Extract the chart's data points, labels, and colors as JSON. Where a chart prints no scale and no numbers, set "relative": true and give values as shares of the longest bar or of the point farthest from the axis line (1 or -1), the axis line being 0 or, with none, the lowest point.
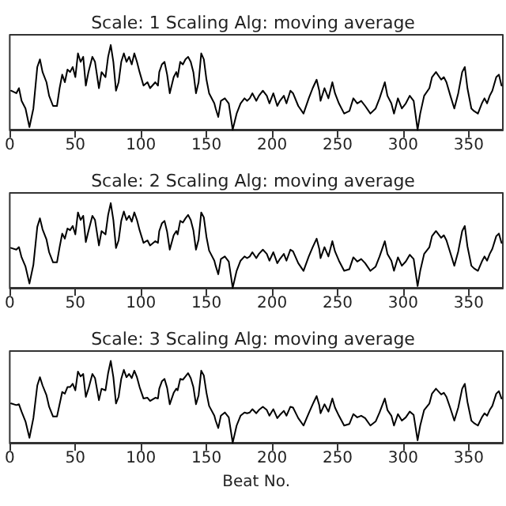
{
  "chart_data": [
    {
      "type": "line",
      "title": "Scale: 1 Scaling Alg: moving average",
      "relative": true,
      "xlim": [
        0,
        376
      ],
      "xticks": [
        0,
        50,
        100,
        150,
        200,
        250,
        300,
        350
      ],
      "tick_labels": "x",
      "grid": false,
      "legend": false,
      "marker": "none",
      "line_style": "solid",
      "series": [
        {
          "color": "#000000",
          "x": [
            1,
            5,
            7,
            9,
            12,
            15,
            18,
            21,
            23,
            25,
            28,
            30,
            33,
            36,
            38,
            40,
            42,
            44,
            46,
            48,
            50,
            52,
            54,
            56,
            58,
            60,
            63,
            65,
            68,
            70,
            73,
            75,
            77,
            79,
            81,
            83,
            85,
            87,
            89,
            91,
            93,
            95,
            97,
            99,
            102,
            105,
            107,
            111,
            113,
            114,
            116,
            118,
            120,
            122,
            125,
            127,
            128,
            130,
            132,
            134,
            136,
            138,
            140,
            142,
            144,
            146,
            148,
            150,
            152,
            156,
            157,
            159,
            161,
            164,
            167,
            170,
            173,
            176,
            179,
            181,
            183,
            185,
            188,
            190,
            193,
            196,
            198,
            201,
            204,
            206,
            209,
            211,
            214,
            216,
            220,
            224,
            228,
            231,
            234,
            236,
            237,
            240,
            243,
            246,
            248,
            251,
            255,
            259,
            262,
            265,
            268,
            271,
            275,
            279,
            282,
            286,
            288,
            291,
            293,
            296,
            299,
            302,
            305,
            308,
            311,
            313,
            316,
            320,
            322,
            325,
            329,
            331,
            333,
            336,
            339,
            342,
            345,
            347,
            349,
            352,
            354,
            357,
            360,
            362,
            364,
            366,
            368,
            371,
            373,
            375
          ],
          "values": [
            0.46,
            0.43,
            0.49,
            0.34,
            0.25,
            0.03,
            0.25,
            0.74,
            0.83,
            0.68,
            0.56,
            0.4,
            0.28,
            0.28,
            0.49,
            0.65,
            0.56,
            0.71,
            0.68,
            0.74,
            0.62,
            0.9,
            0.8,
            0.86,
            0.52,
            0.68,
            0.86,
            0.8,
            0.49,
            0.68,
            0.62,
            0.86,
            1.0,
            0.8,
            0.46,
            0.56,
            0.8,
            0.9,
            0.8,
            0.86,
            0.77,
            0.9,
            0.8,
            0.68,
            0.52,
            0.56,
            0.49,
            0.56,
            0.52,
            0.68,
            0.77,
            0.8,
            0.65,
            0.43,
            0.62,
            0.68,
            0.62,
            0.8,
            0.77,
            0.83,
            0.86,
            0.8,
            0.68,
            0.43,
            0.56,
            0.9,
            0.83,
            0.59,
            0.43,
            0.31,
            0.25,
            0.15,
            0.34,
            0.37,
            0.31,
            0.0,
            0.19,
            0.31,
            0.37,
            0.34,
            0.37,
            0.43,
            0.34,
            0.4,
            0.46,
            0.4,
            0.31,
            0.43,
            0.28,
            0.34,
            0.4,
            0.31,
            0.46,
            0.43,
            0.28,
            0.19,
            0.37,
            0.49,
            0.59,
            0.46,
            0.34,
            0.49,
            0.37,
            0.56,
            0.43,
            0.31,
            0.19,
            0.22,
            0.37,
            0.31,
            0.34,
            0.28,
            0.19,
            0.25,
            0.37,
            0.56,
            0.4,
            0.31,
            0.19,
            0.37,
            0.25,
            0.31,
            0.4,
            0.34,
            0.0,
            0.19,
            0.4,
            0.49,
            0.62,
            0.68,
            0.59,
            0.62,
            0.56,
            0.4,
            0.25,
            0.43,
            0.68,
            0.74,
            0.49,
            0.25,
            0.22,
            0.19,
            0.31,
            0.37,
            0.31,
            0.4,
            0.46,
            0.62,
            0.65,
            0.52
          ]
        }
      ]
    },
    {
      "type": "line",
      "title": "Scale: 2 Scaling Alg: moving average",
      "relative": true,
      "xlim": [
        0,
        376
      ],
      "xticks": [
        0,
        50,
        100,
        150,
        200,
        250,
        300,
        350
      ],
      "tick_labels": "x",
      "grid": false,
      "legend": false,
      "marker": "none",
      "line_style": "solid",
      "series": [
        {
          "color": "#000000",
          "x": [
            1,
            5,
            7,
            9,
            12,
            15,
            18,
            21,
            23,
            25,
            28,
            30,
            33,
            36,
            38,
            40,
            42,
            44,
            46,
            48,
            50,
            52,
            54,
            56,
            58,
            60,
            63,
            65,
            68,
            70,
            73,
            75,
            77,
            79,
            81,
            83,
            85,
            87,
            89,
            91,
            93,
            95,
            97,
            99,
            102,
            105,
            107,
            111,
            113,
            114,
            116,
            118,
            120,
            122,
            125,
            127,
            128,
            130,
            132,
            134,
            136,
            138,
            140,
            142,
            144,
            146,
            148,
            150,
            152,
            156,
            157,
            159,
            161,
            164,
            167,
            170,
            173,
            176,
            179,
            181,
            183,
            185,
            188,
            190,
            193,
            196,
            198,
            201,
            204,
            206,
            209,
            211,
            214,
            216,
            220,
            224,
            228,
            231,
            234,
            236,
            237,
            240,
            243,
            246,
            248,
            251,
            255,
            259,
            262,
            265,
            268,
            271,
            275,
            279,
            282,
            286,
            288,
            291,
            293,
            296,
            299,
            302,
            305,
            308,
            311,
            313,
            316,
            320,
            322,
            325,
            329,
            331,
            333,
            336,
            339,
            342,
            345,
            347,
            349,
            352,
            354,
            357,
            360,
            362,
            364,
            366,
            368,
            371,
            373,
            375
          ],
          "values": [
            0.47,
            0.45,
            0.48,
            0.36,
            0.25,
            0.05,
            0.27,
            0.72,
            0.82,
            0.69,
            0.57,
            0.42,
            0.3,
            0.3,
            0.48,
            0.64,
            0.58,
            0.7,
            0.68,
            0.73,
            0.63,
            0.89,
            0.8,
            0.85,
            0.54,
            0.67,
            0.85,
            0.8,
            0.5,
            0.67,
            0.63,
            0.86,
            1.0,
            0.8,
            0.47,
            0.56,
            0.79,
            0.9,
            0.8,
            0.85,
            0.78,
            0.89,
            0.8,
            0.68,
            0.53,
            0.56,
            0.5,
            0.55,
            0.53,
            0.67,
            0.76,
            0.79,
            0.66,
            0.45,
            0.62,
            0.67,
            0.63,
            0.79,
            0.77,
            0.82,
            0.86,
            0.8,
            0.68,
            0.45,
            0.57,
            0.89,
            0.83,
            0.6,
            0.44,
            0.32,
            0.26,
            0.16,
            0.34,
            0.37,
            0.31,
            0.0,
            0.2,
            0.32,
            0.37,
            0.35,
            0.37,
            0.42,
            0.35,
            0.4,
            0.45,
            0.4,
            0.32,
            0.42,
            0.29,
            0.34,
            0.4,
            0.32,
            0.45,
            0.43,
            0.29,
            0.2,
            0.37,
            0.48,
            0.58,
            0.46,
            0.35,
            0.48,
            0.37,
            0.55,
            0.43,
            0.32,
            0.2,
            0.22,
            0.36,
            0.31,
            0.34,
            0.29,
            0.2,
            0.25,
            0.37,
            0.55,
            0.4,
            0.32,
            0.2,
            0.36,
            0.26,
            0.31,
            0.39,
            0.34,
            0.02,
            0.2,
            0.4,
            0.48,
            0.61,
            0.67,
            0.59,
            0.62,
            0.56,
            0.41,
            0.26,
            0.43,
            0.67,
            0.73,
            0.49,
            0.26,
            0.23,
            0.2,
            0.31,
            0.37,
            0.32,
            0.4,
            0.46,
            0.61,
            0.64,
            0.53
          ]
        }
      ]
    },
    {
      "type": "line",
      "title": "Scale: 3 Scaling Alg: moving average",
      "xlabel": "Beat No.",
      "relative": true,
      "xlim": [
        0,
        376
      ],
      "xticks": [
        0,
        50,
        100,
        150,
        200,
        250,
        300,
        350
      ],
      "tick_labels": "x",
      "grid": false,
      "legend": false,
      "marker": "none",
      "line_style": "solid",
      "series": [
        {
          "color": "#000000",
          "x": [
            1,
            5,
            7,
            9,
            12,
            15,
            18,
            21,
            23,
            25,
            28,
            30,
            33,
            36,
            38,
            40,
            42,
            44,
            46,
            48,
            50,
            52,
            54,
            56,
            58,
            60,
            63,
            65,
            68,
            70,
            73,
            75,
            77,
            79,
            81,
            83,
            85,
            87,
            89,
            91,
            93,
            95,
            97,
            99,
            102,
            105,
            107,
            111,
            113,
            114,
            116,
            118,
            120,
            122,
            125,
            127,
            128,
            130,
            132,
            134,
            136,
            138,
            140,
            142,
            144,
            146,
            148,
            150,
            152,
            156,
            157,
            159,
            161,
            164,
            167,
            170,
            173,
            176,
            179,
            181,
            183,
            185,
            188,
            190,
            193,
            196,
            198,
            201,
            204,
            206,
            209,
            211,
            214,
            216,
            220,
            224,
            228,
            231,
            234,
            236,
            237,
            240,
            243,
            246,
            248,
            251,
            255,
            259,
            262,
            265,
            268,
            271,
            275,
            279,
            282,
            286,
            288,
            291,
            293,
            296,
            299,
            302,
            305,
            308,
            311,
            313,
            316,
            320,
            322,
            325,
            329,
            331,
            333,
            336,
            339,
            342,
            345,
            347,
            349,
            352,
            354,
            357,
            360,
            362,
            364,
            366,
            368,
            371,
            373,
            375
          ],
          "values": [
            0.48,
            0.46,
            0.47,
            0.38,
            0.26,
            0.06,
            0.3,
            0.7,
            0.8,
            0.7,
            0.58,
            0.44,
            0.32,
            0.32,
            0.47,
            0.62,
            0.6,
            0.68,
            0.68,
            0.72,
            0.64,
            0.87,
            0.81,
            0.84,
            0.56,
            0.66,
            0.84,
            0.79,
            0.52,
            0.66,
            0.64,
            0.85,
            1.0,
            0.8,
            0.48,
            0.56,
            0.78,
            0.89,
            0.8,
            0.84,
            0.79,
            0.88,
            0.8,
            0.68,
            0.54,
            0.55,
            0.51,
            0.55,
            0.54,
            0.66,
            0.75,
            0.78,
            0.67,
            0.47,
            0.61,
            0.66,
            0.64,
            0.78,
            0.77,
            0.81,
            0.85,
            0.79,
            0.68,
            0.47,
            0.58,
            0.88,
            0.82,
            0.61,
            0.45,
            0.33,
            0.27,
            0.18,
            0.33,
            0.37,
            0.31,
            0.0,
            0.21,
            0.33,
            0.37,
            0.36,
            0.37,
            0.41,
            0.36,
            0.4,
            0.44,
            0.4,
            0.33,
            0.41,
            0.3,
            0.34,
            0.39,
            0.33,
            0.44,
            0.43,
            0.3,
            0.21,
            0.36,
            0.47,
            0.57,
            0.46,
            0.36,
            0.47,
            0.38,
            0.54,
            0.43,
            0.33,
            0.21,
            0.23,
            0.35,
            0.31,
            0.33,
            0.3,
            0.21,
            0.26,
            0.37,
            0.54,
            0.4,
            0.33,
            0.21,
            0.35,
            0.27,
            0.31,
            0.38,
            0.34,
            0.03,
            0.21,
            0.4,
            0.48,
            0.6,
            0.66,
            0.59,
            0.61,
            0.56,
            0.42,
            0.27,
            0.43,
            0.66,
            0.72,
            0.5,
            0.27,
            0.24,
            0.21,
            0.31,
            0.36,
            0.33,
            0.4,
            0.45,
            0.6,
            0.63,
            0.54
          ]
        }
      ]
    }
  ]
}
